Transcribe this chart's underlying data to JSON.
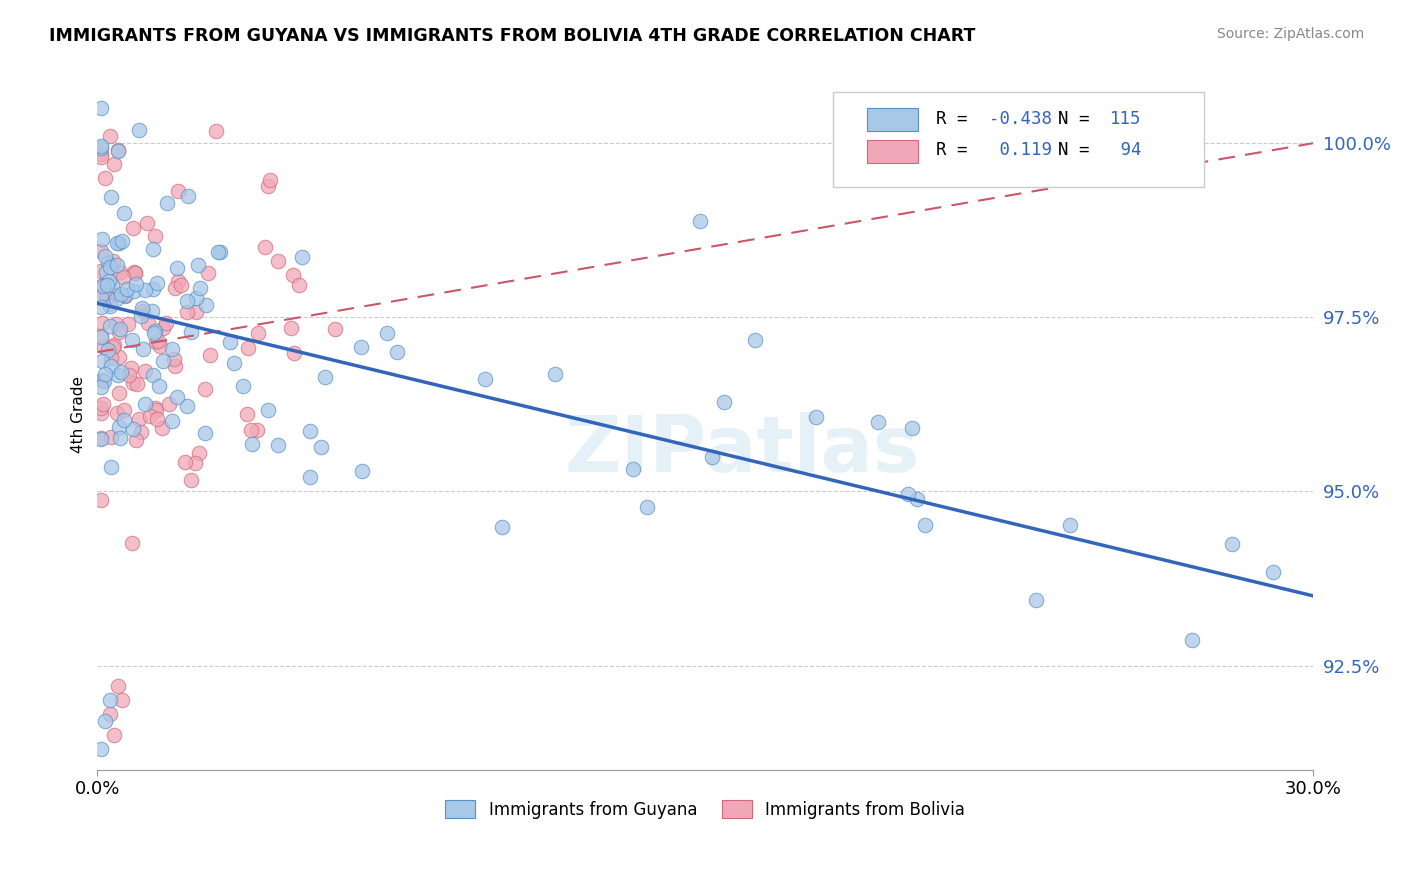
{
  "title": "IMMIGRANTS FROM GUYANA VS IMMIGRANTS FROM BOLIVIA 4TH GRADE CORRELATION CHART",
  "source": "Source: ZipAtlas.com",
  "ylabel": "4th Grade",
  "xlim": [
    0.0,
    0.3
  ],
  "ylim": [
    91.0,
    101.2
  ],
  "color_guyana": "#a8c8e8",
  "color_bolivia": "#f0a8b8",
  "color_guyana_edge": "#5590c8",
  "color_bolivia_edge": "#d06878",
  "color_guyana_line": "#3366bb",
  "color_bolivia_line": "#cc5566",
  "watermark": "ZIPatlas",
  "R_guyana": -0.438,
  "N_guyana": 115,
  "R_bolivia": 0.119,
  "N_bolivia": 94,
  "guyana_line_x0": 0.0,
  "guyana_line_y0": 97.7,
  "guyana_line_x1": 0.3,
  "guyana_line_y1": 93.5,
  "bolivia_line_x0": 0.0,
  "bolivia_line_y0": 96.9,
  "bolivia_line_x1": 0.06,
  "bolivia_line_y1": 97.5
}
